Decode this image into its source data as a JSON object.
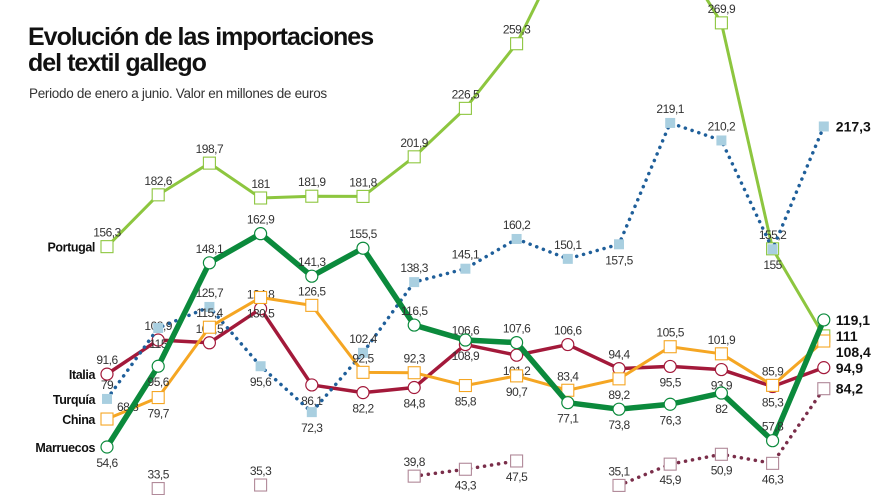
{
  "chart_data": {
    "type": "line",
    "title": "Evolución de las importaciones del textil gallego",
    "subtitle": "Periodo de enero a junio. Valor en millones de euros",
    "xlabel": "",
    "ylabel": "",
    "grid": false,
    "legend": "inline labels at line starts",
    "series": [
      {
        "name": "Portugal",
        "color": "#8dc63f",
        "marker": "square",
        "style": "solid",
        "values": [
          156.3,
          182.6,
          198.7,
          181,
          181.9,
          181.8,
          201.9,
          226.5,
          259.3,
          null,
          null,
          null,
          269.9,
          155.2,
          111
        ]
      },
      {
        "name": "Italia",
        "color": "#a3193a",
        "marker": "circle",
        "style": "solid",
        "values": [
          91.6,
          108.9,
          107.5,
          124.8,
          86.1,
          82.2,
          84.8,
          106.6,
          101.2,
          106.6,
          94.4,
          95.5,
          93.9,
          85.3,
          94.9
        ]
      },
      {
        "name": "Turquía",
        "color": "#1f5f9a",
        "marker": "filled-square",
        "style": "dotted",
        "values": [
          79,
          115,
          125.7,
          95.6,
          72.3,
          102.4,
          138.3,
          145.1,
          160.2,
          150.1,
          157.5,
          219.1,
          210.2,
          155,
          217.3
        ]
      },
      {
        "name": "China",
        "color": "#f5a623",
        "marker": "square",
        "style": "solid",
        "values": [
          68.8,
          79.7,
          115.4,
          130.5,
          126.5,
          92.5,
          92.3,
          85.8,
          90.7,
          83.4,
          89.2,
          105.5,
          101.9,
          85.9,
          108.4
        ]
      },
      {
        "name": "Marruecos",
        "color": "#0b8a3c",
        "marker": "circle",
        "style": "solid",
        "values": [
          54.6,
          95.6,
          148.1,
          162.9,
          141.3,
          155.5,
          116.5,
          108.9,
          107.6,
          77.1,
          73.8,
          76.3,
          82,
          57.8,
          119.1
        ]
      },
      {
        "color": "#7a2e4a",
        "marker": "square",
        "style": "dotted",
        "values": [
          null,
          33.5,
          null,
          35.3,
          null,
          null,
          39.8,
          43.3,
          47.5,
          null,
          35.1,
          45.9,
          50.9,
          46.3,
          84.2
        ]
      }
    ]
  }
}
